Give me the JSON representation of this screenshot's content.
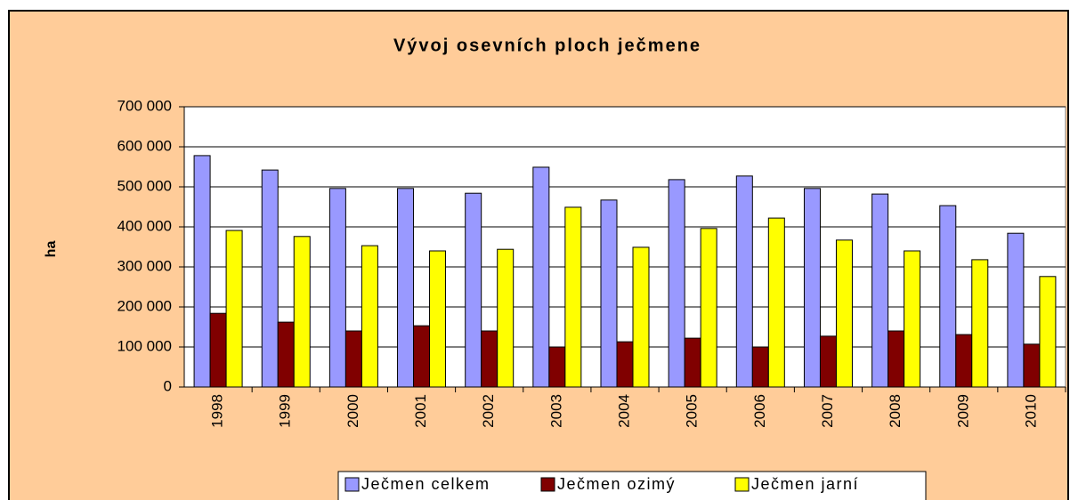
{
  "chart_data": {
    "type": "bar",
    "title": "Vývoj osevních ploch ječmene",
    "y_label": "ha",
    "categories": [
      "1998",
      "1999",
      "2000",
      "2001",
      "2002",
      "2003",
      "2004",
      "2005",
      "2006",
      "2007",
      "2008",
      "2009",
      "2010"
    ],
    "series": [
      {
        "name": "Ječmen celkem",
        "color": "#9999ff",
        "values": [
          578000,
          542000,
          496000,
          496000,
          484000,
          549000,
          467000,
          518000,
          527000,
          496000,
          482000,
          453000,
          384000
        ]
      },
      {
        "name": "Ječmen ozimý",
        "color": "#800000",
        "values": [
          184000,
          162000,
          140000,
          153000,
          140000,
          100000,
          113000,
          122000,
          100000,
          127000,
          140000,
          131000,
          107000
        ]
      },
      {
        "name": "Ječmen jarní",
        "color": "#ffff00",
        "values": [
          391000,
          376000,
          353000,
          340000,
          344000,
          449000,
          349000,
          396000,
          422000,
          367000,
          340000,
          318000,
          276000
        ]
      }
    ],
    "ylim": [
      0,
      700000
    ],
    "yticks": [
      0,
      {
        "value": 100000,
        "label": "100 000"
      },
      {
        "value": 200000,
        "label": "200 000"
      },
      {
        "value": 300000,
        "label": "300 000"
      },
      {
        "value": 400000,
        "label": "400 000"
      },
      {
        "value": 500000,
        "label": "500 000"
      },
      {
        "value": 600000,
        "label": "600 000"
      },
      {
        "value": 700000,
        "label": "700 000"
      }
    ],
    "grid": true,
    "legend": "bottom"
  }
}
